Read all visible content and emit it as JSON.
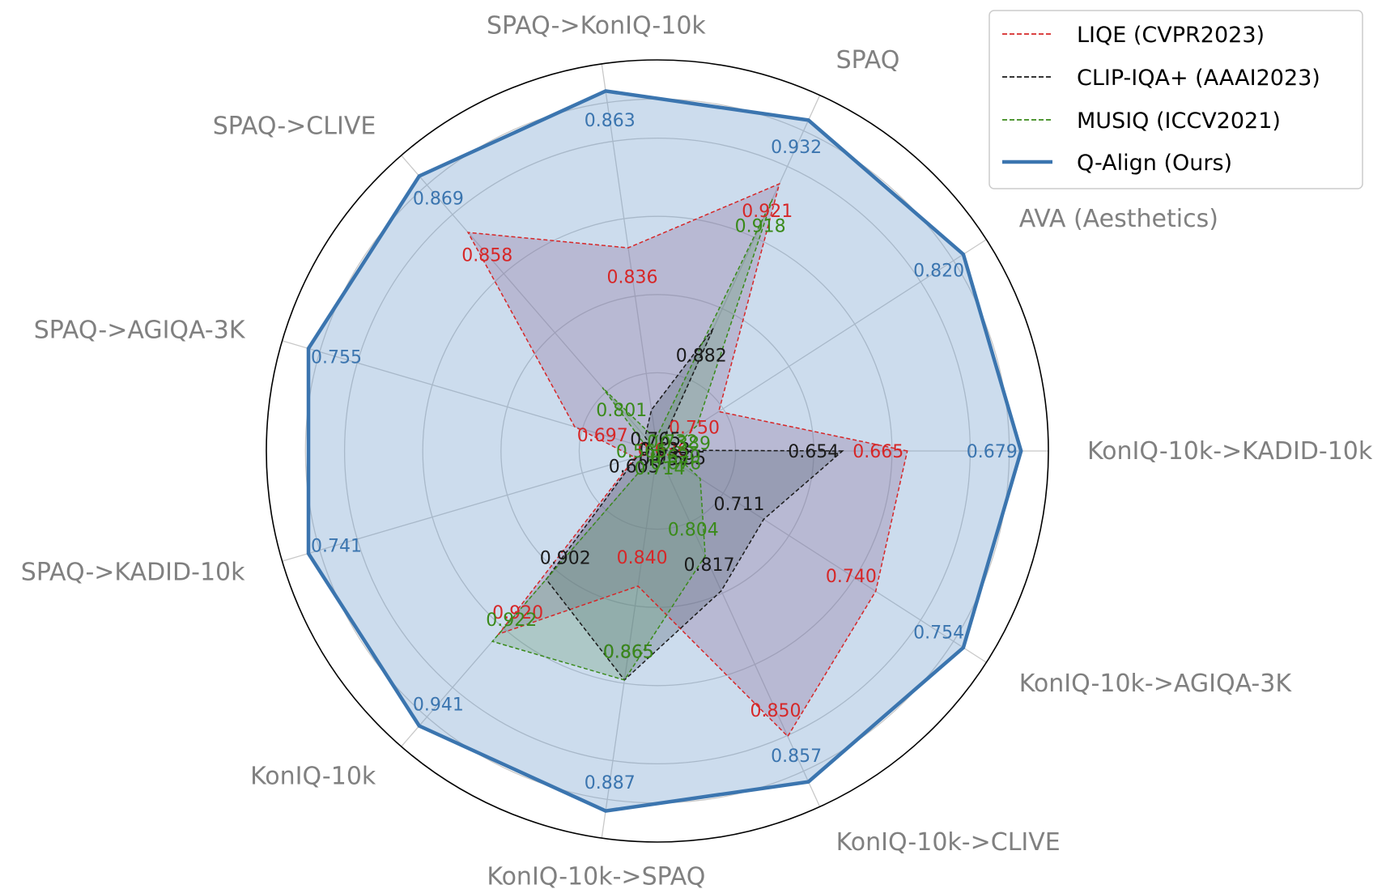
{
  "chart_data": {
    "type": "radar",
    "title": "",
    "axes": [
      "KonIQ-10k->KADID-10k",
      "AVA (Aesthetics)",
      "SPAQ",
      "SPAQ->KonIQ-10k",
      "SPAQ->CLIVE",
      "SPAQ->AGIQA-3K",
      "SPAQ->KADID-10k",
      "KonIQ-10k",
      "KonIQ-10k->SPAQ",
      "KonIQ-10k->CLIVE",
      "KonIQ-10k->AGIQA-3K"
    ],
    "series": [
      {
        "name": "LIQE (CVPR2023)",
        "color": "#d62728",
        "style": "dashed",
        "fill": "#9b4f7a",
        "values": [
          0.665,
          0.75,
          0.921,
          0.836,
          0.858,
          0.697,
          0.636,
          0.92,
          0.84,
          0.85,
          0.74
        ],
        "labels": [
          "0.665",
          "0.750",
          "0.921",
          "0.836",
          "0.858",
          "0.697",
          "0.636",
          "0.920",
          "0.840",
          "0.850",
          "0.740"
        ]
      },
      {
        "name": "CLIP-IQA+ (AAAI2023)",
        "color": "#1a1a1a",
        "style": "dashed",
        "fill": "#3a3a3a",
        "values": [
          0.654,
          0.605,
          0.882,
          0.765,
          0.737,
          0.595,
          0.633,
          0.902,
          0.865,
          0.817,
          0.711
        ],
        "labels": [
          "0.654",
          "0.605",
          "0.882",
          "0.765",
          "0.737",
          "0.595",
          "0.633",
          "0.902",
          "0.865",
          "0.817",
          "0.711"
        ]
      },
      {
        "name": "MUSIQ (ICCV2021)",
        "color": "#3a8a1a",
        "style": "dashed",
        "fill": "#5f9a3f",
        "values": [
          0.565,
          0.732,
          0.918,
          0.714,
          0.801,
          0.62,
          0.389,
          0.922,
          0.865,
          0.804,
          0.676
        ],
        "labels": [
          "0.565",
          "0.732",
          "0.918",
          "0.714",
          "0.801",
          "0.620",
          "0.389",
          "0.922",
          "0.865",
          "0.804",
          "0.676"
        ]
      },
      {
        "name": "Q-Align (Ours)",
        "color": "#3b75af",
        "style": "solid",
        "fill": "#6d9ccb",
        "values": [
          0.679,
          0.82,
          0.932,
          0.863,
          0.869,
          0.755,
          0.741,
          0.941,
          0.887,
          0.857,
          0.754
        ],
        "labels": [
          "0.679",
          "0.820",
          "0.932",
          "0.863",
          "0.869",
          "0.755",
          "0.741",
          "0.941",
          "0.887",
          "0.857",
          "0.754"
        ]
      }
    ],
    "legend_position": "top-right",
    "grid": true
  }
}
